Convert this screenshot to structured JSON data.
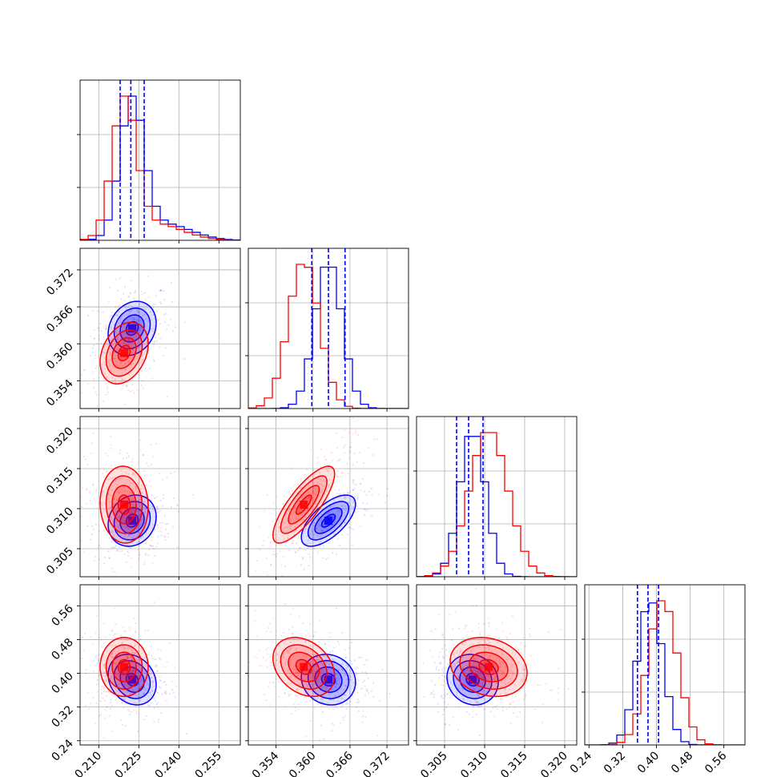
{
  "chart_data": {
    "type": "corner",
    "grid": true,
    "colors": {
      "blue": "#0000ff",
      "red": "#ff0000"
    },
    "series": [
      {
        "color": "#0000ff",
        "means": [
          0.2225,
          0.3625,
          0.3085,
          0.385
        ],
        "sds": [
          0.0045,
          0.0022,
          0.0016,
          0.03
        ],
        "corr": {
          "0,1": 0.2,
          "1,2": 0.65,
          "0,2": 0.15,
          "0,3": -0.2,
          "1,3": -0.1,
          "2,3": -0.1
        },
        "quantiles": {
          "x0": [
            0.218,
            0.222,
            0.227
          ],
          "x1": [
            0.3598,
            0.3625,
            0.3652
          ],
          "x2": [
            0.3065,
            0.308,
            0.3098
          ],
          "x3": [
            0.355,
            0.38,
            0.405
          ]
        }
      },
      {
        "color": "#ff0000",
        "means": [
          0.2195,
          0.3585,
          0.3105,
          0.415
        ],
        "sds": [
          0.0045,
          0.0025,
          0.0024,
          0.035
        ],
        "corr": {
          "0,1": 0.3,
          "1,2": 0.8,
          "0,2": -0.05,
          "0,3": 0.0,
          "1,3": -0.3,
          "2,3": -0.2
        }
      }
    ],
    "panels": [
      {
        "axis": "x0",
        "ticks": [
          0.21,
          0.225,
          0.24,
          0.255
        ],
        "tick_labels": [
          "0.210",
          "0.225",
          "0.240",
          "0.255"
        ],
        "range": [
          0.203,
          0.263
        ]
      },
      {
        "axis": "x1",
        "ticks": [
          0.354,
          0.36,
          0.366,
          0.372
        ],
        "tick_labels": [
          "0.354",
          "0.360",
          "0.366",
          "0.372"
        ],
        "range": [
          0.3495,
          0.3755
        ]
      },
      {
        "axis": "x2",
        "ticks": [
          0.305,
          0.31,
          0.315,
          0.32
        ],
        "tick_labels": [
          "0.305",
          "0.310",
          "0.315",
          "0.320"
        ],
        "range": [
          0.3015,
          0.3215
        ]
      },
      {
        "axis": "x3",
        "ticks": [
          0.24,
          0.32,
          0.4,
          0.48,
          0.56
        ],
        "tick_labels": [
          "0.24",
          "0.32",
          "0.40",
          "0.48",
          "0.56"
        ],
        "range": [
          0.23,
          0.61
        ]
      }
    ],
    "quantile_style": "dashed-blue"
  }
}
